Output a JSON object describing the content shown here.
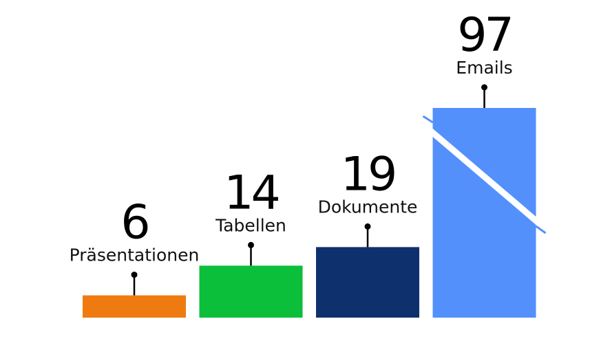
{
  "chart_data": {
    "type": "bar",
    "title": "",
    "xlabel": "",
    "ylabel": "",
    "axis_broken_for": "Emails",
    "categories": [
      "Präsentationen",
      "Tabellen",
      "Dokumente",
      "Emails"
    ],
    "values": [
      6,
      14,
      19,
      97
    ],
    "value_labels": [
      "6",
      "14",
      "19",
      "97"
    ],
    "colors": [
      "#EF7B10",
      "#0BBF3A",
      "#0E316E",
      "#5390FC"
    ]
  }
}
